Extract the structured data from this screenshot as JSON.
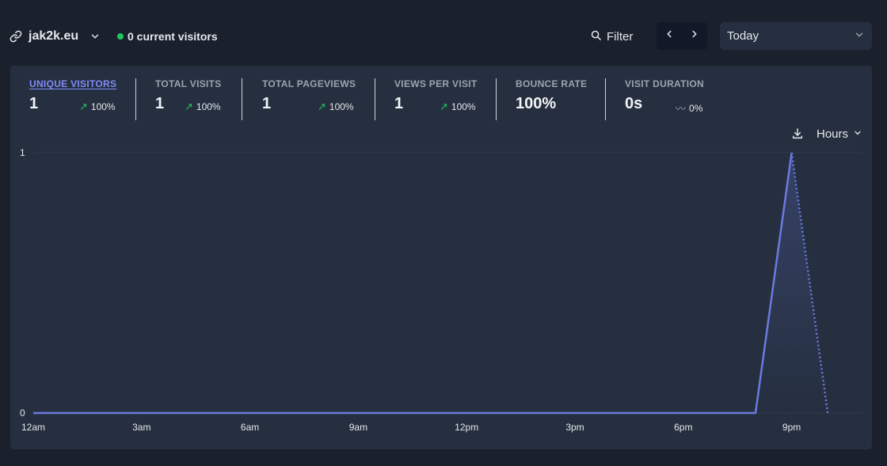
{
  "header": {
    "site_name": "jak2k.eu",
    "current_visitors": "0 current visitors",
    "filter_label": "Filter",
    "period_label": "Today"
  },
  "icons": {
    "site": "link-icon",
    "site_menu": "chevron-down-icon",
    "filter": "search-icon",
    "prev": "chevron-left-icon",
    "next": "chevron-right-icon",
    "period_menu": "chevron-down-icon",
    "download": "download-icon",
    "interval_menu": "chevron-down-icon"
  },
  "colors": {
    "accent": "#6c7ae0",
    "positive": "#22c55e",
    "live_dot": "#22c55e"
  },
  "stats": [
    {
      "label": "UNIQUE VISITORS",
      "value": "1",
      "change": "100%",
      "trend": "up",
      "active": true
    },
    {
      "label": "TOTAL VISITS",
      "value": "1",
      "change": "100%",
      "trend": "up",
      "active": false
    },
    {
      "label": "TOTAL PAGEVIEWS",
      "value": "1",
      "change": "100%",
      "trend": "up",
      "active": false
    },
    {
      "label": "VIEWS PER VISIT",
      "value": "1",
      "change": "100%",
      "trend": "up",
      "active": false
    },
    {
      "label": "BOUNCE RATE",
      "value": "100%",
      "change": "",
      "trend": "none",
      "active": false
    },
    {
      "label": "VISIT DURATION",
      "value": "0s",
      "change": "0%",
      "trend": "flat",
      "active": false
    }
  ],
  "chart_controls": {
    "interval_label": "Hours"
  },
  "chart_data": {
    "type": "line",
    "title": "",
    "xlabel": "",
    "ylabel": "",
    "x_tick_labels": [
      "12am",
      "3am",
      "6am",
      "9am",
      "12pm",
      "3pm",
      "6pm",
      "9pm"
    ],
    "y_tick_labels": [
      "0",
      "1"
    ],
    "ylim": [
      0,
      1
    ],
    "grid": true,
    "series": [
      {
        "values": [
          0,
          0,
          0,
          0,
          0,
          0,
          0,
          0,
          0,
          0,
          0,
          0,
          0,
          0,
          0,
          0,
          0,
          0,
          0,
          0,
          0,
          1,
          0
        ],
        "dashed_from_index": 21
      }
    ]
  }
}
